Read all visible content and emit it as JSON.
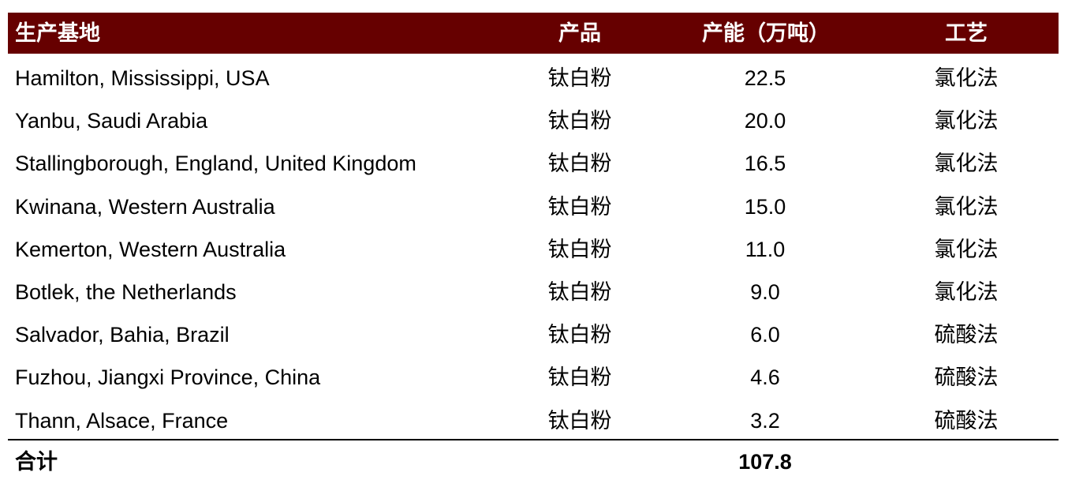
{
  "table": {
    "header_bg": "#660000",
    "columns": [
      "生产基地",
      "产品",
      "产能（万吨）",
      "工艺"
    ],
    "rows": [
      [
        "Hamilton, Mississippi, USA",
        "钛白粉",
        "22.5",
        "氯化法"
      ],
      [
        "Yanbu, Saudi Arabia",
        "钛白粉",
        "20.0",
        "氯化法"
      ],
      [
        "Stallingborough, England, United Kingdom",
        "钛白粉",
        "16.5",
        "氯化法"
      ],
      [
        "Kwinana, Western Australia",
        "钛白粉",
        "15.0",
        "氯化法"
      ],
      [
        "Kemerton, Western Australia",
        "钛白粉",
        "11.0",
        "氯化法"
      ],
      [
        "Botlek, the Netherlands",
        "钛白粉",
        "9.0",
        "氯化法"
      ],
      [
        "Salvador, Bahia, Brazil",
        "钛白粉",
        "6.0",
        "硫酸法"
      ],
      [
        "Fuzhou, Jiangxi Province, China",
        "钛白粉",
        "4.6",
        "硫酸法"
      ],
      [
        "Thann, Alsace, France",
        "钛白粉",
        "3.2",
        "硫酸法"
      ]
    ],
    "total": {
      "label": "合计",
      "value": "107.8"
    }
  }
}
